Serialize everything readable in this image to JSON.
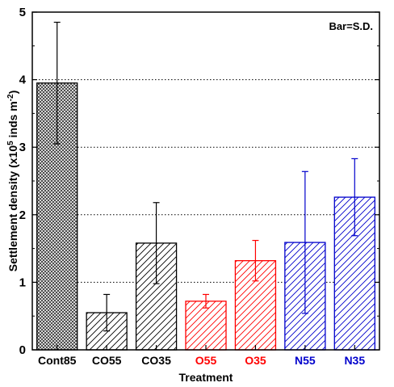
{
  "chart_data": {
    "type": "bar",
    "categories": [
      "Cont85",
      "CO55",
      "CO35",
      "O55",
      "O35",
      "N55",
      "N35"
    ],
    "series": [
      {
        "values": [
          3.95,
          0.55,
          1.58,
          0.72,
          1.32,
          1.59,
          2.26
        ],
        "errors": [
          0.9,
          0.27,
          0.6,
          0.1,
          0.3,
          1.05,
          0.57
        ]
      }
    ],
    "category_colors": [
      "#000000",
      "#000000",
      "#000000",
      "#ff0000",
      "#ff0000",
      "#0000cc",
      "#0000cc"
    ],
    "hatch": [
      "cross",
      "diagonal",
      "diagonal",
      "diagonal",
      "diagonal",
      "diagonal",
      "diagonal"
    ],
    "xlabel": "Treatment",
    "ylabel_parts": [
      "Settlement density (x10",
      "5",
      " inds m",
      "-2",
      ")"
    ],
    "ylim": [
      0,
      5
    ],
    "yticks": [
      0,
      1,
      2,
      3,
      4,
      5
    ],
    "grid": "horizontal-dotted",
    "annotation": "Bar=S.D."
  }
}
